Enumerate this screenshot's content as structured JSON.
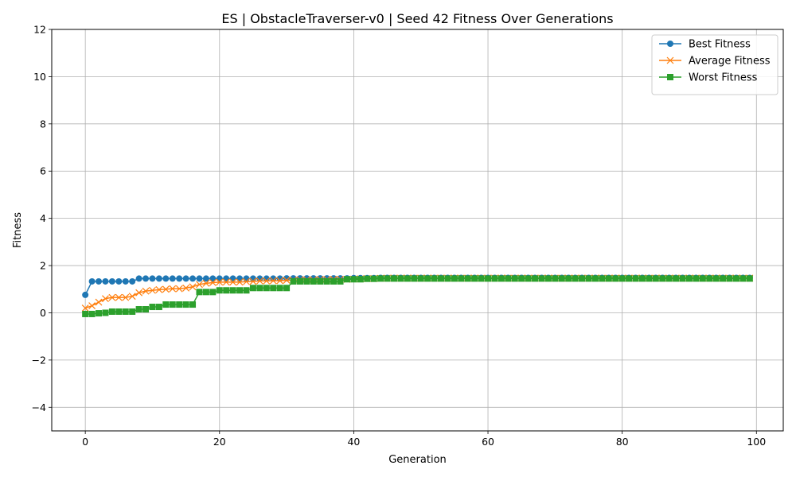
{
  "chart_data": {
    "type": "line",
    "title": "ES | ObstacleTraverser-v0 | Seed 42 Fitness Over Generations",
    "xlabel": "Generation",
    "ylabel": "Fitness",
    "xlim": [
      -5,
      104
    ],
    "ylim": [
      -5,
      12
    ],
    "xticks": [
      0,
      20,
      40,
      60,
      80,
      100
    ],
    "yticks": [
      -4,
      -2,
      0,
      2,
      4,
      6,
      8,
      10,
      12
    ],
    "x_tick_labels": [
      "0",
      "20",
      "40",
      "60",
      "80",
      "100"
    ],
    "y_tick_labels": [
      "−4",
      "−2",
      "0",
      "2",
      "4",
      "6",
      "8",
      "10",
      "12"
    ],
    "grid": true,
    "legend_position": "top-right",
    "x_start": 0,
    "series": [
      {
        "name": "Best Fitness",
        "color": "#1f77b4",
        "marker": "circle",
        "values": [
          0.76,
          1.33,
          1.33,
          1.33,
          1.33,
          1.33,
          1.33,
          1.33,
          1.45,
          1.45,
          1.45,
          1.45,
          1.45,
          1.45,
          1.45,
          1.45,
          1.45,
          1.45,
          1.45,
          1.45,
          1.45,
          1.45,
          1.45,
          1.45,
          1.45,
          1.45,
          1.45,
          1.45,
          1.45,
          1.45,
          1.46,
          1.46,
          1.46,
          1.46,
          1.46,
          1.46,
          1.46,
          1.46,
          1.46,
          1.46,
          1.47,
          1.47,
          1.47,
          1.47,
          1.48,
          1.48,
          1.48,
          1.48,
          1.48,
          1.48,
          1.48,
          1.48,
          1.48,
          1.48,
          1.48,
          1.48,
          1.48,
          1.48,
          1.48,
          1.48,
          1.48,
          1.48,
          1.48,
          1.48,
          1.48,
          1.48,
          1.48,
          1.48,
          1.48,
          1.48,
          1.48,
          1.48,
          1.48,
          1.48,
          1.48,
          1.48,
          1.48,
          1.48,
          1.48,
          1.48,
          1.48,
          1.48,
          1.48,
          1.48,
          1.48,
          1.48,
          1.48,
          1.48,
          1.48,
          1.48,
          1.48,
          1.48,
          1.48,
          1.48,
          1.48,
          1.48,
          1.48,
          1.48,
          1.48,
          1.48
        ]
      },
      {
        "name": "Average Fitness",
        "color": "#ff7f0e",
        "marker": "x",
        "values": [
          0.2,
          0.3,
          0.45,
          0.6,
          0.65,
          0.65,
          0.65,
          0.7,
          0.85,
          0.92,
          0.95,
          0.98,
          1.0,
          1.02,
          1.02,
          1.05,
          1.1,
          1.2,
          1.25,
          1.28,
          1.3,
          1.3,
          1.3,
          1.3,
          1.32,
          1.33,
          1.35,
          1.35,
          1.36,
          1.36,
          1.38,
          1.38,
          1.4,
          1.4,
          1.4,
          1.41,
          1.41,
          1.42,
          1.42,
          1.42,
          1.43,
          1.44,
          1.45,
          1.45,
          1.46,
          1.47,
          1.47,
          1.47,
          1.47,
          1.47,
          1.47,
          1.47,
          1.47,
          1.47,
          1.47,
          1.47,
          1.47,
          1.47,
          1.47,
          1.47,
          1.47,
          1.47,
          1.47,
          1.47,
          1.47,
          1.47,
          1.47,
          1.47,
          1.47,
          1.47,
          1.47,
          1.47,
          1.47,
          1.47,
          1.47,
          1.47,
          1.47,
          1.47,
          1.47,
          1.47,
          1.47,
          1.47,
          1.47,
          1.47,
          1.47,
          1.47,
          1.47,
          1.47,
          1.47,
          1.47,
          1.47,
          1.47,
          1.47,
          1.47,
          1.47,
          1.47,
          1.47,
          1.47,
          1.47,
          1.47
        ]
      },
      {
        "name": "Worst Fitness",
        "color": "#2ca02c",
        "marker": "square",
        "values": [
          -0.05,
          -0.05,
          -0.02,
          0.0,
          0.05,
          0.05,
          0.05,
          0.05,
          0.15,
          0.15,
          0.25,
          0.25,
          0.35,
          0.35,
          0.35,
          0.35,
          0.35,
          0.88,
          0.88,
          0.88,
          0.95,
          0.95,
          0.95,
          0.95,
          0.95,
          1.05,
          1.05,
          1.05,
          1.05,
          1.05,
          1.05,
          1.33,
          1.33,
          1.33,
          1.33,
          1.33,
          1.33,
          1.33,
          1.33,
          1.42,
          1.42,
          1.42,
          1.44,
          1.44,
          1.45,
          1.45,
          1.45,
          1.45,
          1.45,
          1.45,
          1.45,
          1.45,
          1.45,
          1.45,
          1.45,
          1.45,
          1.45,
          1.45,
          1.45,
          1.45,
          1.45,
          1.45,
          1.45,
          1.45,
          1.45,
          1.45,
          1.45,
          1.45,
          1.45,
          1.45,
          1.45,
          1.45,
          1.45,
          1.45,
          1.45,
          1.45,
          1.45,
          1.45,
          1.45,
          1.45,
          1.45,
          1.45,
          1.45,
          1.45,
          1.45,
          1.45,
          1.45,
          1.45,
          1.45,
          1.45,
          1.45,
          1.45,
          1.45,
          1.45,
          1.45,
          1.45,
          1.45,
          1.45,
          1.45,
          1.45
        ]
      }
    ]
  }
}
